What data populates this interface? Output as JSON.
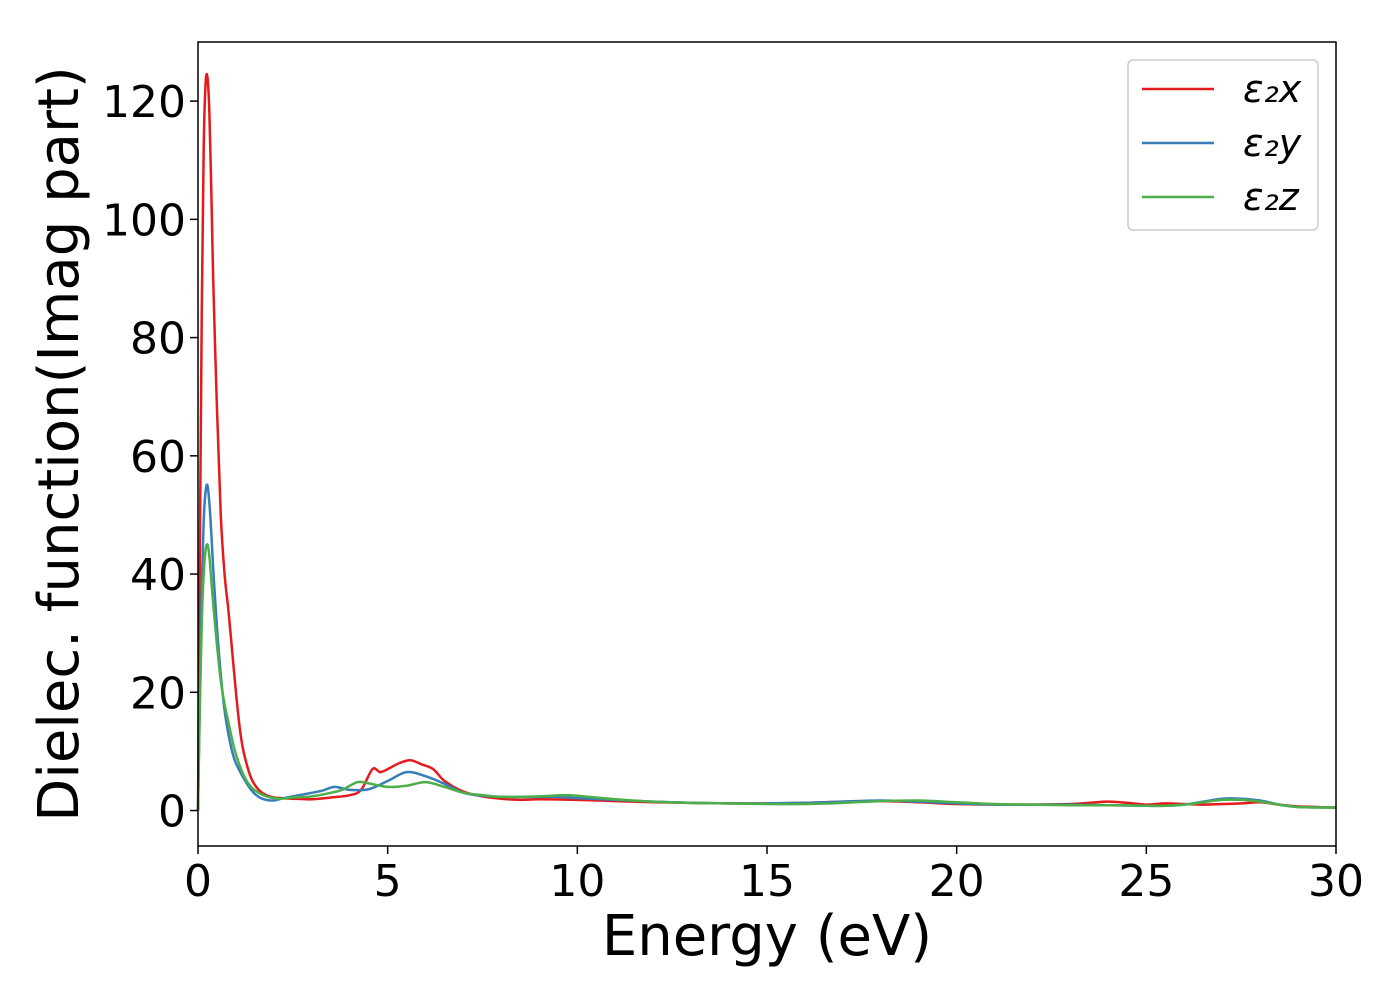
{
  "chart_data": {
    "type": "line",
    "xlabel": "Energy (eV)",
    "ylabel": "Dielec. function(Imag part)",
    "xlim": [
      0,
      30
    ],
    "ylim": [
      -6,
      130
    ],
    "x_ticks": [
      "0",
      "5",
      "10",
      "15",
      "20",
      "25",
      "30"
    ],
    "y_ticks": [
      "0",
      "20",
      "40",
      "60",
      "80",
      "100",
      "120"
    ],
    "grid": false,
    "legend_position": "top-right",
    "series": [
      {
        "name": "ε₂x",
        "color": "#e41a1c",
        "x": [
          0,
          0.05,
          0.1,
          0.15,
          0.2,
          0.25,
          0.3,
          0.35,
          0.4,
          0.5,
          0.6,
          0.7,
          0.8,
          0.9,
          1.0,
          1.1,
          1.2,
          1.4,
          1.6,
          1.8,
          2.0,
          2.2,
          2.5,
          3.0,
          3.5,
          4.0,
          4.3,
          4.6,
          4.8,
          5.0,
          5.3,
          5.6,
          5.9,
          6.2,
          6.5,
          7.0,
          7.5,
          8.0,
          8.5,
          9.0,
          10.0,
          11.0,
          12.0,
          13.0,
          14.0,
          15.0,
          16.0,
          17.0,
          18.0,
          19.0,
          20.0,
          21.0,
          22.0,
          23.0,
          23.5,
          24.0,
          24.5,
          25.0,
          25.5,
          26.0,
          26.5,
          27.0,
          27.5,
          28.0,
          28.5,
          29.0,
          30.0
        ],
        "y": [
          0,
          45,
          85,
          112,
          123,
          124,
          118,
          105,
          90,
          68,
          50,
          40,
          34,
          27,
          20,
          14,
          10,
          5.5,
          3.5,
          2.6,
          2.2,
          2.1,
          2.0,
          1.9,
          2.2,
          2.6,
          3.5,
          7.0,
          6.5,
          7.0,
          8.0,
          8.5,
          7.8,
          7.0,
          5.0,
          3.2,
          2.4,
          2.0,
          1.8,
          1.9,
          1.8,
          1.6,
          1.4,
          1.3,
          1.2,
          1.2,
          1.3,
          1.5,
          1.6,
          1.4,
          1.1,
          1.0,
          1.0,
          1.1,
          1.3,
          1.5,
          1.3,
          1.0,
          1.2,
          1.1,
          1.0,
          1.1,
          1.2,
          1.4,
          1.0,
          0.7,
          0.5
        ]
      },
      {
        "name": "ε₂y",
        "color": "#377eb8",
        "x": [
          0,
          0.05,
          0.1,
          0.15,
          0.2,
          0.25,
          0.3,
          0.35,
          0.4,
          0.5,
          0.6,
          0.7,
          0.8,
          0.9,
          1.0,
          1.2,
          1.4,
          1.6,
          1.8,
          2.0,
          2.2,
          2.5,
          3.0,
          3.3,
          3.6,
          4.0,
          4.5,
          5.0,
          5.5,
          6.0,
          6.5,
          7.0,
          7.5,
          8.0,
          9.0,
          9.5,
          10.0,
          11.0,
          12.0,
          13.0,
          14.0,
          15.0,
          16.0,
          17.0,
          18.0,
          19.0,
          20.0,
          21.0,
          22.0,
          23.0,
          24.0,
          25.0,
          25.5,
          26.0,
          26.5,
          27.0,
          27.5,
          28.0,
          28.5,
          29.0,
          30.0
        ],
        "y": [
          0,
          20,
          38,
          49,
          54,
          55,
          52,
          47,
          41,
          31,
          23,
          17,
          13,
          10,
          8,
          5.5,
          3.5,
          2.3,
          1.8,
          1.7,
          2.0,
          2.4,
          3.0,
          3.4,
          4.0,
          3.5,
          3.6,
          5.0,
          6.5,
          5.8,
          4.5,
          3.0,
          2.5,
          2.3,
          2.3,
          2.3,
          2.1,
          1.8,
          1.5,
          1.3,
          1.2,
          1.2,
          1.3,
          1.5,
          1.7,
          1.5,
          1.2,
          1.0,
          1.0,
          1.0,
          0.9,
          0.8,
          0.8,
          1.0,
          1.5,
          2.0,
          2.0,
          1.7,
          1.0,
          0.6,
          0.5
        ]
      },
      {
        "name": "ε₂z",
        "color": "#4daf4a",
        "x": [
          0,
          0.05,
          0.1,
          0.15,
          0.2,
          0.25,
          0.3,
          0.35,
          0.4,
          0.5,
          0.6,
          0.7,
          0.8,
          0.9,
          1.0,
          1.2,
          1.4,
          1.6,
          1.8,
          2.0,
          2.2,
          2.5,
          3.0,
          3.5,
          3.8,
          4.2,
          4.5,
          5.0,
          5.5,
          6.0,
          6.5,
          7.0,
          7.5,
          8.0,
          9.0,
          9.7,
          10.5,
          11.0,
          12.0,
          13.0,
          14.0,
          15.0,
          16.0,
          17.0,
          18.0,
          19.0,
          20.0,
          21.0,
          22.0,
          23.0,
          24.0,
          25.0,
          25.5,
          26.0,
          26.5,
          27.0,
          27.5,
          28.0,
          28.5,
          29.0,
          30.0
        ],
        "y": [
          0,
          18,
          32,
          40,
          44,
          45,
          43,
          39,
          35,
          28,
          22,
          18,
          15,
          12,
          9.5,
          6.0,
          4.0,
          3.0,
          2.4,
          2.1,
          2.0,
          2.2,
          2.4,
          3.0,
          3.5,
          4.8,
          4.6,
          4.0,
          4.2,
          4.8,
          4.0,
          3.0,
          2.6,
          2.3,
          2.4,
          2.6,
          2.2,
          1.9,
          1.5,
          1.3,
          1.2,
          1.1,
          1.1,
          1.3,
          1.6,
          1.7,
          1.4,
          1.1,
          1.0,
          0.9,
          0.9,
          0.8,
          0.8,
          1.0,
          1.4,
          1.8,
          1.8,
          1.5,
          1.0,
          0.6,
          0.5
        ]
      }
    ]
  }
}
